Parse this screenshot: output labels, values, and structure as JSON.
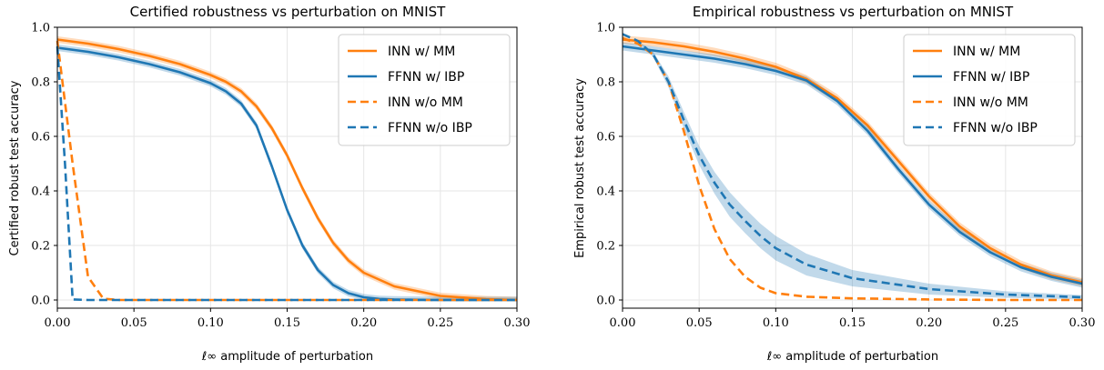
{
  "chart_data": [
    {
      "type": "line",
      "title": "Certified robustness vs perturbation on MNIST",
      "xlabel": "ℓ∞ amplitude of perturbation",
      "ylabel": "Certified robust test accuracy",
      "xlim": [
        0,
        0.3
      ],
      "ylim": [
        -0.03,
        1.0
      ],
      "xticks": [
        0,
        0.05,
        0.1,
        0.15,
        0.2,
        0.25,
        0.3
      ],
      "xtick_labels": [
        "0.00",
        "0.05",
        "0.10",
        "0.15",
        "0.20",
        "0.25",
        "0.30"
      ],
      "yticks": [
        0,
        0.2,
        0.4,
        0.6,
        0.8,
        1.0
      ],
      "ytick_labels": [
        "0.0",
        "0.2",
        "0.4",
        "0.6",
        "0.8",
        "1.0"
      ],
      "grid": true,
      "legend_position": "top-right",
      "series": [
        {
          "name": "INN w/ MM",
          "color": "#ff7f0e",
          "style": "solid",
          "x": [
            0,
            0.02,
            0.04,
            0.06,
            0.08,
            0.1,
            0.11,
            0.12,
            0.13,
            0.14,
            0.15,
            0.16,
            0.17,
            0.18,
            0.19,
            0.2,
            0.22,
            0.25,
            0.28,
            0.3
          ],
          "y": [
            0.955,
            0.94,
            0.92,
            0.895,
            0.865,
            0.825,
            0.8,
            0.765,
            0.71,
            0.63,
            0.53,
            0.41,
            0.3,
            0.21,
            0.145,
            0.1,
            0.05,
            0.015,
            0.003,
            0.0
          ],
          "band": 0.012
        },
        {
          "name": "FFNN w/ IBP",
          "color": "#1f77b4",
          "style": "solid",
          "x": [
            0,
            0.02,
            0.04,
            0.06,
            0.08,
            0.1,
            0.11,
            0.12,
            0.13,
            0.14,
            0.15,
            0.16,
            0.17,
            0.18,
            0.19,
            0.2,
            0.21,
            0.22,
            0.25,
            0.3
          ],
          "y": [
            0.925,
            0.91,
            0.89,
            0.865,
            0.835,
            0.795,
            0.765,
            0.72,
            0.64,
            0.49,
            0.33,
            0.2,
            0.11,
            0.055,
            0.025,
            0.01,
            0.004,
            0.002,
            0.0,
            0.0
          ],
          "band": 0.012
        },
        {
          "name": "INN w/o MM",
          "color": "#ff7f0e",
          "style": "dashed",
          "x": [
            0,
            0.01,
            0.02,
            0.03,
            0.04,
            0.3
          ],
          "y": [
            0.95,
            0.5,
            0.085,
            0.005,
            0.0,
            0.0
          ],
          "band": 0
        },
        {
          "name": "FFNN w/o IBP",
          "color": "#1f77b4",
          "style": "dashed",
          "x": [
            0,
            0.005,
            0.01,
            0.02,
            0.3
          ],
          "y": [
            0.93,
            0.5,
            0.002,
            0.0,
            0.0
          ],
          "band": 0
        }
      ]
    },
    {
      "type": "line",
      "title": "Empirical robustness vs perturbation on MNIST",
      "xlabel": "ℓ∞ amplitude of perturbation",
      "ylabel": "Empirical robust test accuracy",
      "xlim": [
        0,
        0.3
      ],
      "ylim": [
        -0.03,
        1.0
      ],
      "xticks": [
        0,
        0.05,
        0.1,
        0.15,
        0.2,
        0.25,
        0.3
      ],
      "xtick_labels": [
        "0.00",
        "0.05",
        "0.10",
        "0.15",
        "0.20",
        "0.25",
        "0.30"
      ],
      "yticks": [
        0,
        0.2,
        0.4,
        0.6,
        0.8,
        1.0
      ],
      "ytick_labels": [
        "0.0",
        "0.2",
        "0.4",
        "0.6",
        "0.8",
        "1.0"
      ],
      "grid": true,
      "legend_position": "top-right",
      "series": [
        {
          "name": "INN w/ MM",
          "color": "#ff7f0e",
          "style": "solid",
          "x": [
            0,
            0.02,
            0.04,
            0.06,
            0.08,
            0.1,
            0.12,
            0.14,
            0.16,
            0.18,
            0.2,
            0.22,
            0.24,
            0.26,
            0.28,
            0.3
          ],
          "y": [
            0.955,
            0.945,
            0.93,
            0.91,
            0.885,
            0.855,
            0.81,
            0.74,
            0.64,
            0.51,
            0.38,
            0.27,
            0.19,
            0.13,
            0.09,
            0.065
          ],
          "band": 0.015
        },
        {
          "name": "FFNN w/ IBP",
          "color": "#1f77b4",
          "style": "solid",
          "x": [
            0,
            0.02,
            0.04,
            0.06,
            0.08,
            0.1,
            0.12,
            0.14,
            0.16,
            0.18,
            0.2,
            0.22,
            0.24,
            0.26,
            0.28,
            0.3
          ],
          "y": [
            0.93,
            0.915,
            0.9,
            0.885,
            0.865,
            0.84,
            0.805,
            0.73,
            0.62,
            0.48,
            0.35,
            0.25,
            0.175,
            0.12,
            0.085,
            0.06
          ],
          "band": 0.015
        },
        {
          "name": "INN w/o MM",
          "color": "#ff7f0e",
          "style": "dashed",
          "x": [
            0,
            0.01,
            0.02,
            0.03,
            0.04,
            0.05,
            0.06,
            0.07,
            0.08,
            0.09,
            0.1,
            0.12,
            0.15,
            0.2,
            0.25,
            0.3
          ],
          "y": [
            0.96,
            0.94,
            0.9,
            0.8,
            0.62,
            0.42,
            0.26,
            0.15,
            0.085,
            0.045,
            0.025,
            0.012,
            0.006,
            0.002,
            0.0,
            0.0
          ],
          "band": 0
        },
        {
          "name": "FFNN w/o IBP",
          "color": "#1f77b4",
          "style": "dashed",
          "x": [
            0,
            0.01,
            0.02,
            0.03,
            0.04,
            0.05,
            0.06,
            0.07,
            0.08,
            0.09,
            0.1,
            0.12,
            0.15,
            0.2,
            0.25,
            0.3
          ],
          "y": [
            0.975,
            0.95,
            0.9,
            0.8,
            0.66,
            0.53,
            0.43,
            0.35,
            0.29,
            0.235,
            0.19,
            0.13,
            0.08,
            0.04,
            0.02,
            0.01
          ],
          "band": [
            0,
            0,
            0.01,
            0.02,
            0.03,
            0.035,
            0.04,
            0.045,
            0.045,
            0.045,
            0.045,
            0.04,
            0.03,
            0.02,
            0.012,
            0.008
          ]
        }
      ]
    }
  ]
}
